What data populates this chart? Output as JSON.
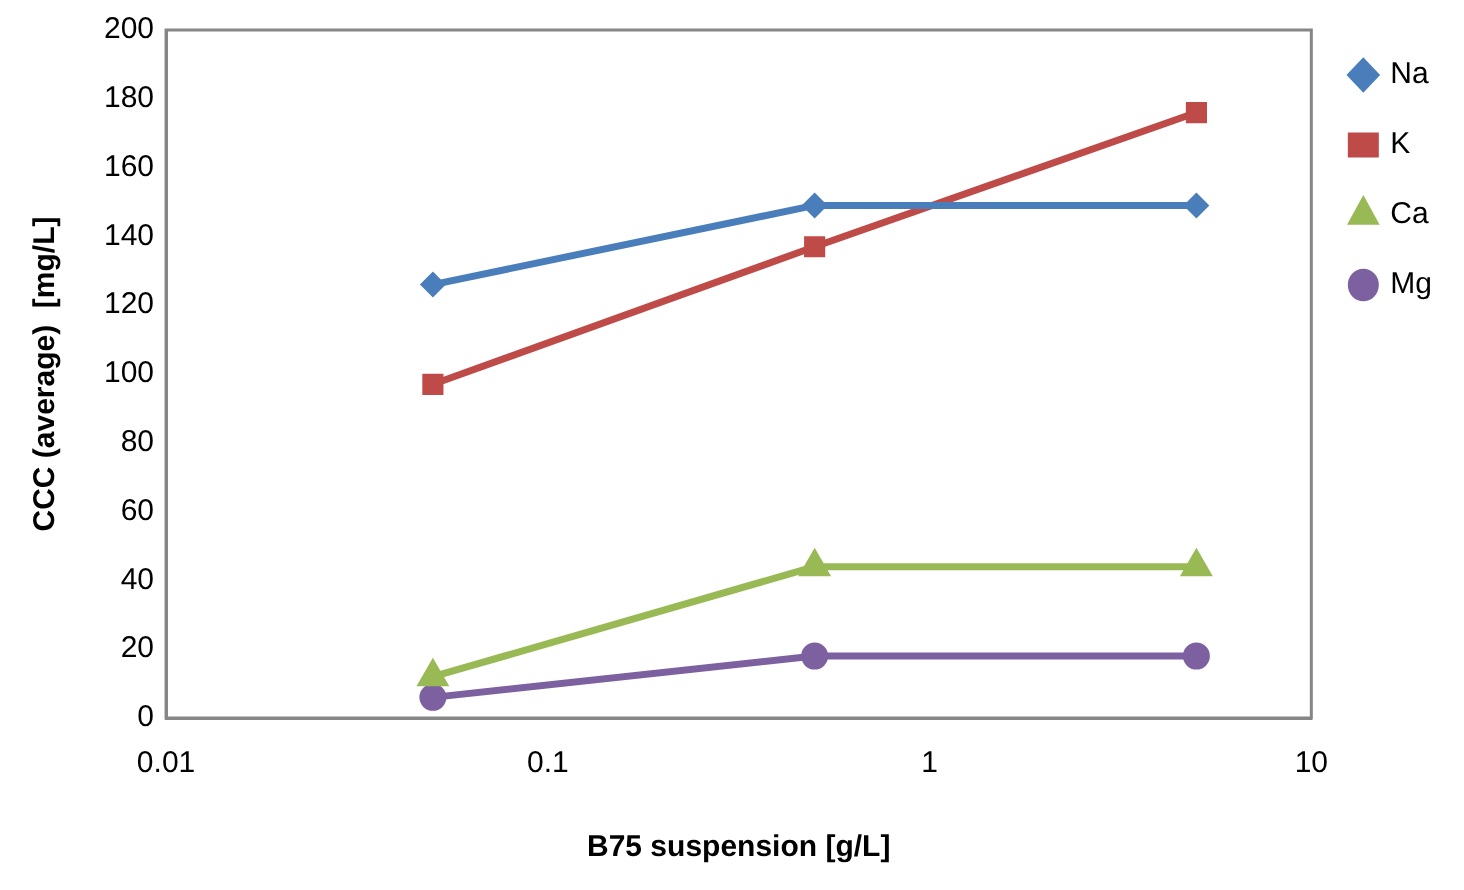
{
  "chart_data": {
    "type": "line",
    "xlabel": "B75 suspension [g/L]",
    "ylabel": "CCC (average)  [mg/L]",
    "log": "x",
    "xlim": [
      0.01,
      10
    ],
    "xticks": [
      0.01,
      0.1,
      1,
      10
    ],
    "ylim": [
      0,
      200
    ],
    "yticks": [
      0,
      20,
      40,
      60,
      80,
      100,
      120,
      140,
      160,
      180,
      200
    ],
    "grid": false,
    "legend": "right",
    "x": [
      0.05,
      0.5,
      5
    ],
    "series": [
      {
        "name": "Na",
        "color": "#4a7ebb",
        "marker": "diamond",
        "values": [
          126,
          149,
          149
        ]
      },
      {
        "name": "K",
        "color": "#be4b48",
        "marker": "square",
        "values": [
          97,
          137,
          176
        ]
      },
      {
        "name": "Ca",
        "color": "#98b954",
        "marker": "triangle",
        "values": [
          12,
          44,
          44
        ]
      },
      {
        "name": "Mg",
        "color": "#7d60a0",
        "marker": "circle",
        "values": [
          6,
          18,
          18
        ]
      }
    ]
  }
}
